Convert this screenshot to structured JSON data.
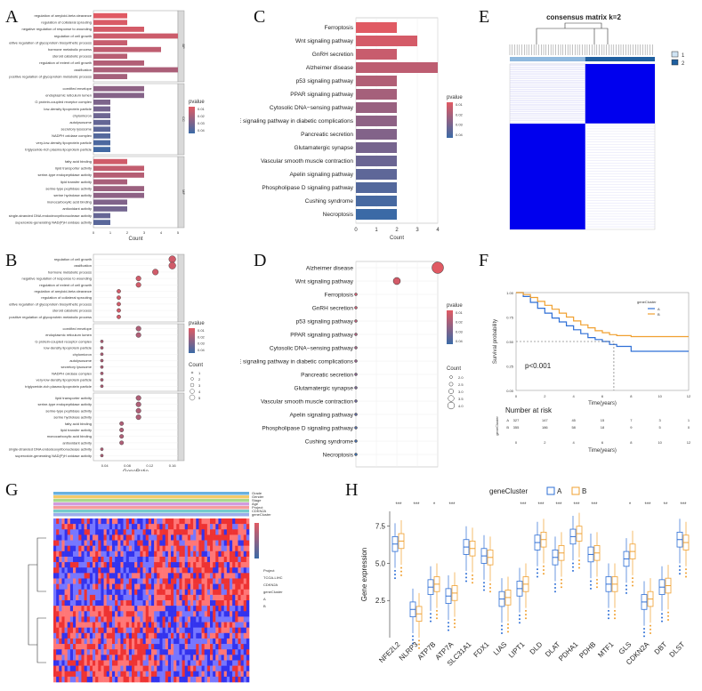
{
  "panels": {
    "A": "A",
    "B": "B",
    "C": "C",
    "D": "D",
    "E": "E",
    "F": "F",
    "G": "G",
    "H": "H"
  },
  "colors": {
    "high": "#e05a63",
    "low": "#3b6aa6",
    "accent_orange": "#f0a030",
    "accent_blue": "#2e6fd6",
    "heat_blue": "#0000ee"
  },
  "panelA": {
    "xlabel": "Count",
    "xticks": [
      "0",
      "1",
      "2",
      "3",
      "4",
      "5"
    ],
    "legend_title": "pvalue",
    "legend_ticks": [
      "0.01",
      "0.02",
      "0.03",
      "0.04"
    ],
    "facets": [
      "BP",
      "CC",
      "MF"
    ],
    "groups": [
      {
        "terms": [
          "regulation of amyloid-beta clearance",
          "regulation of collateral sprouting",
          "negative regulation of response to wounding",
          "regulation of cell growth",
          "positive regulation of glycoprotein biosynthetic process",
          "hormone metabolic process",
          "steroid catabolic process",
          "regulation of extent of cell growth",
          "ossification",
          "positive regulation of glycoprotein metabolic process"
        ],
        "values": [
          2,
          2,
          3,
          5,
          2,
          4,
          2,
          3,
          5,
          2
        ]
      },
      {
        "terms": [
          "cornified envelope",
          "endoplasmic reticulum lumen",
          "G protein-coupled receptor complex",
          "low-density lipoprotein particle",
          "chylomicron",
          "autolysosome",
          "secretory lysosome",
          "NADPH oxidase complex",
          "very-low-density lipoprotein particle",
          "triglyceride-rich plasma lipoprotein particle"
        ],
        "values": [
          3,
          3,
          1,
          1,
          1,
          1,
          1,
          1,
          1,
          1
        ]
      },
      {
        "terms": [
          "fatty acid binding",
          "lipid transporter activity",
          "serine-type endopeptidase activity",
          "lipid transfer activity",
          "serine-type peptidase activity",
          "serine hydrolase activity",
          "monocarboxylic acid binding",
          "antioxidant activity",
          "single-stranded DNA endodeoxyribonuclease activity",
          "superoxide-generating NAD(P)H oxidase activity"
        ],
        "values": [
          2,
          3,
          3,
          2,
          3,
          3,
          2,
          2,
          1,
          1
        ]
      }
    ]
  },
  "panelB": {
    "xlabel": "GeneRatio",
    "xticks": [
      "0.04",
      "0.08",
      "0.12",
      "0.16"
    ],
    "legend_title": "pvalue",
    "legend_ticks": [
      "0.01",
      "0.02",
      "0.03",
      "0.04"
    ],
    "count_title": "Count",
    "count_ticks": [
      "1",
      "2",
      "3",
      "4",
      "5"
    ],
    "groups": [
      {
        "terms": [
          "regulation of cell growth",
          "ossification",
          "hormone metabolic process",
          "negative regulation of response to wounding",
          "regulation of extent of cell growth",
          "regulation of amyloid-beta clearance",
          "regulation of collateral sprouting",
          "positive regulation of glycoprotein biosynthetic process",
          "steroid catabolic process",
          "positive regulation of glycoprotein metabolic process"
        ],
        "ratios": [
          0.16,
          0.16,
          0.13,
          0.1,
          0.1,
          0.065,
          0.065,
          0.065,
          0.065,
          0.065
        ]
      },
      {
        "terms": [
          "cornified envelope",
          "endoplasmic reticulum lumen",
          "G protein-coupled receptor complex",
          "low-density lipoprotein particle",
          "chylomicron",
          "autolysosome",
          "secretory lysosome",
          "NADPH oxidase complex",
          "very-low-density lipoprotein particle",
          "triglyceride-rich plasma lipoprotein particle"
        ],
        "ratios": [
          0.1,
          0.1,
          0.035,
          0.035,
          0.035,
          0.035,
          0.035,
          0.035,
          0.035,
          0.035
        ]
      },
      {
        "terms": [
          "lipid transporter activity",
          "serine-type endopeptidase activity",
          "serine-type peptidase activity",
          "serine hydrolase activity",
          "fatty acid binding",
          "lipid transfer activity",
          "monocarboxylic acid binding",
          "antioxidant activity",
          "single-stranded DNA endodeoxyribonuclease activity",
          "superoxide-generating NAD(P)H oxidase activity"
        ],
        "ratios": [
          0.1,
          0.1,
          0.1,
          0.1,
          0.07,
          0.07,
          0.07,
          0.07,
          0.035,
          0.035
        ]
      }
    ]
  },
  "chart_data": [
    {
      "type": "bar",
      "title": "C",
      "xlabel": "Count",
      "ylabel": "",
      "xlim": [
        0,
        4
      ],
      "categories": [
        "Ferroptosis",
        "Wnt signaling pathway",
        "GnRH secretion",
        "Alzheimer disease",
        "p53 signaling pathway",
        "PPAR signaling pathway",
        "Cytosolic DNA−sensing pathway",
        "AGE−RAGE signaling pathway in diabetic complications",
        "Pancreatic secretion",
        "Glutamatergic synapse",
        "Vascular smooth muscle contraction",
        "Apelin signaling pathway",
        "Phospholipase D signaling pathway",
        "Cushing syndrome",
        "Necroptosis"
      ],
      "values": [
        2,
        3,
        2,
        4,
        2,
        2,
        2,
        2,
        2,
        2,
        2,
        2,
        2,
        2,
        2
      ],
      "xticks": [
        "0",
        "1",
        "2",
        "3",
        "4"
      ],
      "legend_title": "pvalue",
      "legend_ticks": [
        "0.01",
        "0.02",
        "0.03",
        "0.04"
      ]
    },
    {
      "type": "scatter",
      "title": "D",
      "xlabel": "GeneRatio",
      "ylabel": "",
      "xlim": [
        0.1,
        0.2
      ],
      "categories": [
        "Alzheimer disease",
        "Wnt signaling pathway",
        "Ferroptosis",
        "GnRH secretion",
        "p53 signaling pathway",
        "PPAR signaling pathway",
        "Cytosolic DNA−sensing pathway",
        "AGE−RAGE signaling pathway in diabetic complications",
        "Pancreatic secretion",
        "Glutamatergic synapse",
        "Vascular smooth muscle contraction",
        "Apelin signaling pathway",
        "Phospholipase D signaling pathway",
        "Cushing syndrome",
        "Necroptosis"
      ],
      "values": [
        0.2,
        0.15,
        0.1,
        0.1,
        0.1,
        0.1,
        0.1,
        0.1,
        0.1,
        0.1,
        0.1,
        0.1,
        0.1,
        0.1,
        0.1
      ],
      "counts": [
        4,
        3,
        2,
        2,
        2,
        2,
        2,
        2,
        2,
        2,
        2,
        2,
        2,
        2,
        2
      ],
      "xticks": [
        "0.100",
        "0.125",
        "0.150",
        "0.175",
        "0.200"
      ],
      "legend_title": "pvalue",
      "legend_ticks": [
        "0.01",
        "0.02",
        "0.03",
        "0.04"
      ],
      "count_title": "Count",
      "count_ticks": [
        "2.0",
        "2.5",
        "3.0",
        "3.5",
        "4.0"
      ]
    },
    {
      "type": "heatmap",
      "title": "consensus matrix k=2",
      "legend": [
        "1",
        "2"
      ],
      "clusters": 2
    },
    {
      "type": "line",
      "title": "F",
      "xlabel": "Time(years)",
      "ylabel": "Survival probability",
      "xlim": [
        0,
        12
      ],
      "ylim": [
        0,
        1
      ],
      "xticks": [
        "0",
        "2",
        "4",
        "6",
        "8",
        "10",
        "12"
      ],
      "yticks": [
        "0.00",
        "0.25",
        "0.50",
        "0.75",
        "1.00"
      ],
      "legend_title": "geneCluster",
      "series": [
        {
          "name": "A",
          "x": [
            0,
            0.5,
            1,
            1.5,
            2,
            2.5,
            3,
            3.5,
            4,
            4.5,
            5,
            5.5,
            6,
            6.5,
            7,
            7.5,
            8,
            9,
            10,
            11,
            12
          ],
          "values": [
            1,
            0.96,
            0.9,
            0.84,
            0.79,
            0.74,
            0.7,
            0.66,
            0.62,
            0.58,
            0.54,
            0.52,
            0.5,
            0.47,
            0.45,
            0.45,
            0.4,
            0.4,
            0.4,
            0.4,
            0.4
          ]
        },
        {
          "name": "B",
          "x": [
            0,
            0.5,
            1,
            1.5,
            2,
            2.5,
            3,
            3.5,
            4,
            4.5,
            5,
            5.5,
            6,
            6.5,
            7,
            8,
            9,
            10,
            11,
            12
          ],
          "values": [
            1,
            0.98,
            0.95,
            0.91,
            0.87,
            0.83,
            0.79,
            0.75,
            0.71,
            0.67,
            0.64,
            0.61,
            0.59,
            0.57,
            0.56,
            0.55,
            0.55,
            0.55,
            0.55,
            0.55
          ]
        }
      ],
      "pvalue": "p<0.001",
      "risk_title": "Number at risk",
      "risk_rows": [
        {
          "name": "A",
          "counts": [
            "327",
            "147",
            "45",
            "15",
            "7",
            "3",
            "1"
          ]
        },
        {
          "name": "B",
          "counts": [
            "355",
            "186",
            "58",
            "18",
            "9",
            "5",
            "0"
          ]
        }
      ],
      "risk_axis_label": "geneCluster",
      "risk_xlabel": "Time(years)"
    },
    {
      "type": "heatmap",
      "title": "G",
      "annotation_legend": [
        "Project",
        "CDKN2A",
        "geneCluster"
      ],
      "annotation_items": [
        "TCGA-LIHC",
        "TCGA",
        "Grade",
        "G1",
        "G2",
        "G3",
        "G4",
        "A",
        "B"
      ]
    },
    {
      "type": "box",
      "title": "H",
      "xlabel": "",
      "ylabel": "Gene expression",
      "ylim": [
        0,
        8.5
      ],
      "legend_title": "geneCluster",
      "legend": [
        "A",
        "B"
      ],
      "yticks": [
        "2.5",
        "5.0",
        "7.5"
      ],
      "categories": [
        "NFE2L2",
        "NLRP3",
        "ATP7B",
        "ATP7A",
        "SLC31A1",
        "FDX1",
        "LIAS",
        "LIPT1",
        "DLD",
        "DLAT",
        "PDHA1",
        "PDHB",
        "MTF1",
        "GLS",
        "CDKN2A",
        "DBT",
        "DLST"
      ],
      "series": [
        {
          "name": "A",
          "values": [
            6.3,
            1.9,
            3.4,
            2.8,
            6.1,
            5.5,
            2.6,
            3.3,
            6.4,
            5.4,
            6.8,
            5.6,
            3.6,
            5.3,
            2.4,
            3.4,
            6.6
          ]
        },
        {
          "name": "B",
          "values": [
            6.5,
            1.6,
            3.6,
            3.0,
            6.0,
            5.4,
            2.7,
            3.6,
            6.6,
            5.7,
            7.0,
            5.7,
            3.6,
            5.8,
            2.6,
            3.5,
            6.4
          ]
        }
      ],
      "significance": [
        "***",
        "***",
        "*",
        "***",
        "",
        "",
        "",
        "***",
        "***",
        "***",
        "***",
        "***",
        "",
        "*",
        "***",
        "**",
        "***"
      ]
    }
  ],
  "panelE": {
    "legend": [
      "1",
      "2"
    ]
  },
  "panelG": {
    "annot_rows": [
      "Grade",
      "Gender",
      "Stage",
      "Age",
      "Project",
      "CDKN2A",
      "geneCluster"
    ],
    "legend_labels": [
      "Project",
      "TCGA-LIHC",
      "CDKN2A",
      "geneCluster",
      "A",
      "B"
    ]
  }
}
